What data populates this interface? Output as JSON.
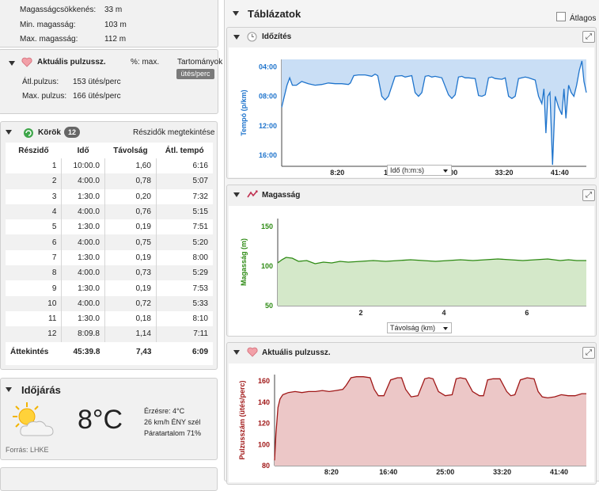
{
  "elevation": {
    "rows": [
      {
        "label": "Magasságcsökkenés:",
        "value": "33 m"
      },
      {
        "label": "Min. magasság:",
        "value": "103 m"
      },
      {
        "label": "Max. magasság:",
        "value": "112 m"
      }
    ]
  },
  "heart": {
    "title": "Aktuális pulzussz.",
    "pct_label": "%: max.",
    "zones_label": "Tartományok",
    "unit_badge": "ütés/perc",
    "rows": [
      {
        "label": "Átl.pulzus:",
        "value": "153 ütés/perc"
      },
      {
        "label": "Max. pulzus:",
        "value": "166 ütés/perc"
      }
    ]
  },
  "laps": {
    "title": "Körök",
    "count": "12",
    "link": "Részidők megtekintése",
    "headers": [
      "Részidő",
      "Idő",
      "Távolság",
      "Átl. tempó"
    ],
    "rows": [
      [
        "1",
        "10:00.0",
        "1,60",
        "6:16"
      ],
      [
        "2",
        "4:00.0",
        "0,78",
        "5:07"
      ],
      [
        "3",
        "1:30.0",
        "0,20",
        "7:32"
      ],
      [
        "4",
        "4:00.0",
        "0,76",
        "5:15"
      ],
      [
        "5",
        "1:30.0",
        "0,19",
        "7:51"
      ],
      [
        "6",
        "4:00.0",
        "0,75",
        "5:20"
      ],
      [
        "7",
        "1:30.0",
        "0,19",
        "8:00"
      ],
      [
        "8",
        "4:00.0",
        "0,73",
        "5:29"
      ],
      [
        "9",
        "1:30.0",
        "0,19",
        "7:53"
      ],
      [
        "10",
        "4:00.0",
        "0,72",
        "5:33"
      ],
      [
        "11",
        "1:30.0",
        "0,18",
        "8:10"
      ],
      [
        "12",
        "8:09.8",
        "1,14",
        "7:11"
      ]
    ],
    "summary": [
      "Áttekintés",
      "45:39.8",
      "7,43",
      "6:09"
    ]
  },
  "weather": {
    "title": "Időjárás",
    "temp": "8°C",
    "feels": "Érzésre: 4°C",
    "wind": "26 km/h ÉNY szél",
    "humidity": "Páratartalom 71%",
    "source": "Forrás: LHKE"
  },
  "charts_section": {
    "title": "Táblázatok",
    "average_label": "Átlagos"
  },
  "chart_data": [
    {
      "type": "area",
      "title": "Időzítés",
      "ylabel": "Tempó (p/km)",
      "xlabel": "Idő (h:m:s)",
      "y_ticks": [
        "04:00",
        "08:00",
        "12:00",
        "16:00"
      ],
      "x_ticks": [
        "8:20",
        "16:40",
        "25:00",
        "33:20",
        "41:40"
      ],
      "color": "#1f74cc",
      "fill": "#c9def5",
      "ylim_minutes": [
        3,
        17.5
      ],
      "y_inverted": true,
      "xlim_minutes": [
        0,
        45.66
      ],
      "x_minutes": [
        0,
        0.8,
        1.2,
        1.6,
        2.2,
        3,
        4,
        5,
        6,
        7,
        8,
        9,
        10,
        10.3,
        10.8,
        11.5,
        12.5,
        13.5,
        14,
        14.4,
        15,
        15.5,
        16,
        17,
        18,
        18.5,
        19,
        19.5,
        20,
        20.5,
        21,
        21.5,
        22,
        22.5,
        23,
        24,
        25,
        25.5,
        26,
        26.5,
        27,
        27.5,
        28,
        29,
        29.5,
        30,
        30.5,
        31,
        31.5,
        32,
        33,
        33.5,
        34,
        34.5,
        35,
        35.5,
        36,
        36.5,
        37,
        38,
        38.5,
        39,
        39.3,
        39.6,
        39.9,
        40.2,
        40.6,
        41,
        41.5,
        42,
        42.3,
        42.6,
        43,
        43.4,
        43.8,
        44.2,
        44.6,
        45,
        45.3,
        45.66
      ],
      "pace_minutes": [
        9.5,
        6.5,
        5.5,
        6.5,
        6.5,
        6.0,
        6.3,
        6.5,
        6.4,
        6.2,
        6.3,
        6.3,
        6.4,
        6.2,
        5.2,
        5.1,
        5.1,
        5.3,
        5.0,
        5.2,
        8.0,
        8.5,
        8.0,
        5.3,
        5.2,
        5.4,
        5.3,
        5.2,
        7.5,
        8.0,
        7.5,
        5.3,
        5.2,
        5.4,
        5.3,
        5.5,
        7.8,
        8.3,
        7.8,
        5.4,
        5.3,
        5.5,
        5.5,
        5.6,
        7.9,
        8.0,
        7.8,
        5.5,
        5.4,
        5.6,
        5.7,
        5.5,
        8.0,
        8.3,
        8.0,
        5.6,
        5.5,
        5.4,
        5.5,
        5.8,
        8.0,
        9.0,
        7.0,
        13.0,
        8.0,
        7.5,
        17.3,
        8.0,
        9.5,
        10.5,
        7.0,
        11.0,
        6.5,
        7.5,
        8.0,
        6.5,
        4.5,
        3.2,
        6.0,
        7.5
      ]
    },
    {
      "type": "area",
      "title": "Magasság",
      "ylabel": "Magasság (m)",
      "xlabel": "Távolság (km)",
      "y_ticks": [
        "150",
        "100",
        "50"
      ],
      "x_ticks": [
        "2",
        "4",
        "6"
      ],
      "color": "#2e8b14",
      "fill": "#d4e8c9",
      "ylim": [
        50,
        160
      ],
      "xlim": [
        0,
        7.43
      ],
      "x": [
        0,
        0.1,
        0.2,
        0.35,
        0.5,
        0.7,
        0.9,
        1.1,
        1.3,
        1.5,
        1.7,
        2.0,
        2.3,
        2.6,
        2.9,
        3.2,
        3.5,
        3.8,
        4.1,
        4.4,
        4.7,
        5.0,
        5.3,
        5.6,
        5.9,
        6.2,
        6.5,
        6.8,
        7.0,
        7.2,
        7.43
      ],
      "y": [
        104,
        108,
        111,
        110,
        106,
        107,
        103,
        105,
        104,
        106,
        105,
        106,
        107,
        106,
        107,
        108,
        107,
        106,
        107,
        108,
        107,
        108,
        109,
        108,
        107,
        108,
        109,
        107,
        108,
        107,
        107
      ]
    },
    {
      "type": "area",
      "title": "Aktuális pulzussz.",
      "ylabel": "Pulzusszám (ütés/perc)",
      "x_ticks": [
        "8:20",
        "16:40",
        "25:00",
        "33:20",
        "41:40"
      ],
      "y_ticks": [
        "160",
        "140",
        "120",
        "100",
        "80"
      ],
      "color": "#a01818",
      "fill": "#ecc7c7",
      "ylim": [
        80,
        166
      ],
      "xlim_minutes": [
        0,
        45.66
      ],
      "x_minutes": [
        0,
        0.2,
        0.5,
        0.8,
        1.2,
        1.6,
        2.0,
        3,
        4,
        5,
        6,
        7,
        8,
        9,
        10,
        10.5,
        11.2,
        12,
        13,
        14,
        14.6,
        15.2,
        16,
        17,
        18,
        18.6,
        19.2,
        20,
        21,
        22,
        22.6,
        23.2,
        24,
        25,
        26,
        26.6,
        27.2,
        28,
        29,
        30,
        30.6,
        31.2,
        32,
        33,
        34,
        34.6,
        35.2,
        36,
        37,
        38,
        38.6,
        39.2,
        40,
        41,
        42,
        43,
        44,
        45,
        45.66
      ],
      "y": [
        85,
        110,
        135,
        143,
        147,
        148,
        149,
        150,
        149,
        150,
        150,
        151,
        150,
        151,
        152,
        156,
        163,
        164,
        164,
        163,
        152,
        146,
        146,
        161,
        163,
        163,
        152,
        145,
        146,
        162,
        163,
        162,
        150,
        146,
        147,
        162,
        163,
        162,
        150,
        146,
        146,
        161,
        162,
        162,
        150,
        146,
        147,
        161,
        163,
        162,
        150,
        145,
        144,
        145,
        147,
        146,
        146,
        148,
        148
      ]
    }
  ]
}
